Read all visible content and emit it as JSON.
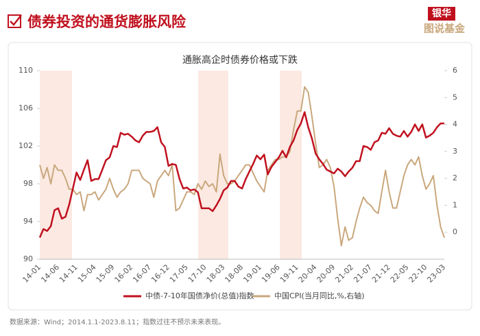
{
  "header": {
    "title": "债券投资的通货膨胀风险",
    "logo_top": "银华",
    "logo_bottom": "图说基金"
  },
  "chart_data": {
    "type": "line",
    "title": "通胀高企时债券价格或下跌",
    "categories": [
      "14-01",
      null,
      null,
      null,
      null,
      "14-06",
      null,
      null,
      null,
      null,
      "14-11",
      null,
      null,
      null,
      null,
      "15-04",
      null,
      null,
      null,
      null,
      "15-09",
      null,
      null,
      null,
      null,
      "16-02",
      null,
      null,
      null,
      null,
      "16-07",
      null,
      null,
      null,
      null,
      "16-12",
      null,
      null,
      null,
      null,
      "17-05",
      null,
      null,
      null,
      null,
      "17-10",
      null,
      null,
      null,
      null,
      "18-03",
      null,
      null,
      null,
      null,
      "18-08",
      null,
      null,
      null,
      null,
      "19-01",
      null,
      null,
      null,
      null,
      "19-06",
      null,
      null,
      null,
      null,
      "19-11",
      null,
      null,
      null,
      null,
      "20-04",
      null,
      null,
      null,
      null,
      "20-09",
      null,
      null,
      null,
      null,
      "21-02",
      null,
      null,
      null,
      null,
      "21-07",
      null,
      null,
      null,
      null,
      "21-12",
      null,
      null,
      null,
      null,
      "22-05",
      null,
      null,
      null,
      null,
      "22-10",
      null,
      null,
      null,
      null,
      "23-03"
    ],
    "series": [
      {
        "name": "中债-7-10年国债净价(总值)指数",
        "color": "#c0101e",
        "values": [
          92.3,
          93.2,
          93.0,
          93.5,
          95.2,
          95.4,
          94.3,
          94.5,
          95.8,
          97.5,
          99.2,
          98.4,
          99.5,
          100.5,
          98.3,
          98.5,
          98.5,
          99.5,
          100.5,
          100.8,
          102.0,
          101.9,
          103.4,
          103.2,
          103.3,
          103.0,
          102.6,
          102.4,
          103.1,
          103.5,
          103.5,
          103.6,
          104.0,
          102.4,
          101.9,
          99.9,
          100.1,
          100.0,
          98.5,
          97.5,
          97.6,
          97.3,
          97.4,
          97.1,
          95.4,
          95.4,
          95.4,
          95.1,
          95.7,
          96.4,
          97.3,
          97.6,
          98.3,
          98.3,
          97.7,
          97.5,
          98.5,
          99.3,
          100.1,
          101.0,
          100.6,
          101.1,
          99.0,
          99.8,
          100.3,
          100.8,
          101.5,
          100.8,
          101.9,
          102.6,
          103.7,
          104.4,
          105.6,
          104.0,
          102.8,
          101.2,
          100.6,
          100.1,
          99.5,
          99.3,
          99.1,
          99.6,
          99.3,
          98.8,
          99.3,
          99.7,
          100.4,
          100.4,
          102.0,
          101.9,
          101.6,
          102.4,
          102.6,
          103.4,
          103.3,
          103.9,
          103.3,
          103.1,
          103.0,
          103.6,
          103.0,
          103.5,
          104.3,
          103.6,
          104.3,
          102.9,
          103.1,
          103.4,
          104.0,
          104.4,
          104.4
        ]
      },
      {
        "name": "中国CPI(当月同比,%,右轴)",
        "color": "#c9a77c",
        "axis": "y2",
        "values": [
          2.5,
          2.0,
          2.4,
          1.8,
          2.5,
          2.3,
          2.3,
          2.0,
          1.6,
          1.6,
          1.4,
          1.5,
          0.8,
          1.4,
          1.4,
          1.5,
          1.2,
          1.4,
          1.6,
          2.0,
          1.6,
          1.3,
          1.5,
          1.6,
          1.8,
          2.3,
          2.3,
          2.3,
          2.0,
          1.9,
          1.8,
          1.3,
          1.9,
          2.1,
          2.3,
          2.1,
          2.5,
          0.8,
          0.9,
          1.2,
          1.5,
          1.5,
          1.4,
          1.8,
          1.6,
          1.9,
          1.7,
          1.8,
          1.5,
          2.9,
          2.1,
          1.8,
          1.8,
          1.9,
          2.1,
          2.3,
          2.5,
          2.5,
          2.2,
          1.9,
          1.7,
          1.5,
          2.3,
          2.5,
          2.7,
          2.7,
          2.8,
          2.8,
          3.0,
          3.8,
          4.5,
          4.5,
          5.4,
          5.2,
          4.3,
          3.3,
          2.4,
          2.5,
          2.7,
          2.4,
          1.7,
          0.5,
          -0.5,
          0.2,
          -0.3,
          -0.2,
          0.4,
          0.9,
          1.3,
          1.1,
          1.0,
          0.8,
          0.7,
          1.5,
          2.3,
          1.5,
          0.9,
          0.9,
          1.5,
          2.1,
          2.5,
          2.7,
          2.5,
          2.8,
          2.1,
          1.6,
          1.8,
          2.1,
          1.0,
          0.2,
          -0.2
        ]
      }
    ],
    "ylim": [
      90,
      110
    ],
    "yticks": [
      90,
      94,
      98,
      102,
      106,
      110
    ],
    "y2lim": [
      -1,
      6
    ],
    "y2ticks": [
      0,
      1,
      2,
      3,
      4,
      5,
      6
    ],
    "grid": false,
    "legend": "bottom"
  },
  "footer": {
    "source": "数据来源：Wind；2014.1.1-2023.8.11；指数过往不预示未来表现。"
  }
}
